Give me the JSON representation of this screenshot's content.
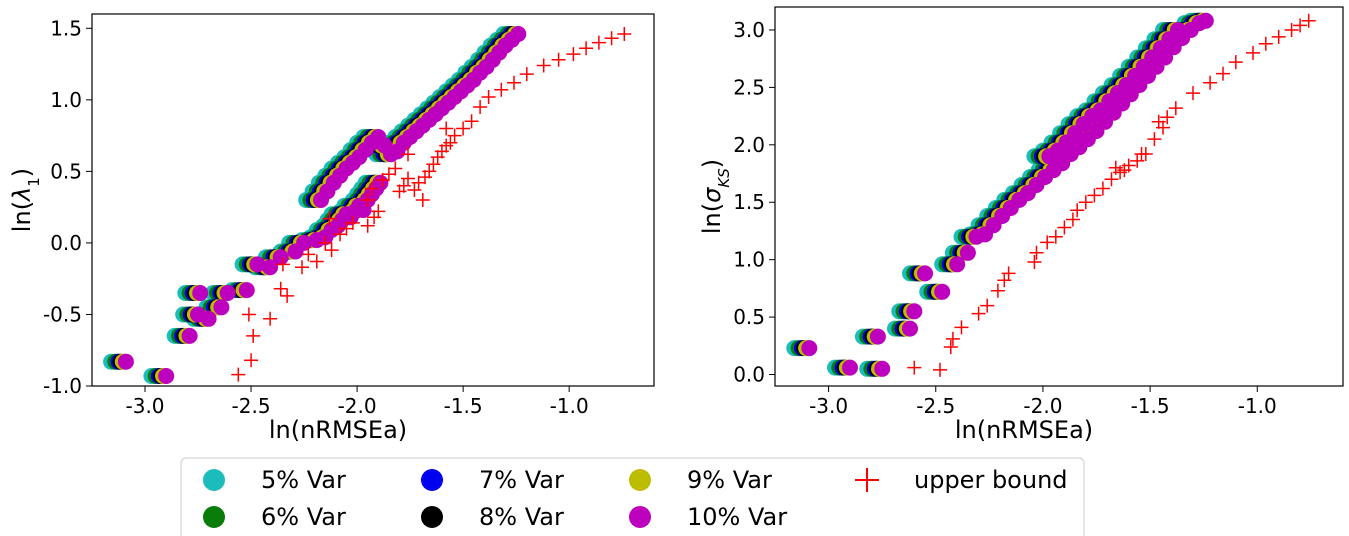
{
  "chart_data": [
    {
      "type": "scatter",
      "xlabel": "ln(nRMSEa)",
      "ylabel": "ln(λ1)",
      "xlim": [
        -3.25,
        -0.6
      ],
      "ylim": [
        -1.0,
        1.6
      ],
      "xticks": [
        -3.0,
        -2.5,
        -2.0,
        -1.5,
        -1.0
      ],
      "xtick_labels": [
        "-3.0",
        "-2.5",
        "-2.0",
        "-1.5",
        "-1.0"
      ],
      "yticks": [
        -1.0,
        -0.5,
        0.0,
        0.5,
        1.0,
        1.5
      ],
      "ytick_labels": [
        "-1.0",
        "-0.5",
        "0.0",
        "0.5",
        "1.0",
        "1.5"
      ],
      "grid": false,
      "variance_series": [
        {
          "name": "5% Var",
          "color": "#1cbcbc",
          "shift": -0.04
        },
        {
          "name": "6% Var",
          "color": "#0a7c0a",
          "shift": -0.02
        },
        {
          "name": "7% Var",
          "color": "#0000f0",
          "shift": -0.005
        },
        {
          "name": "8% Var",
          "color": "#000000",
          "shift": 0.005
        },
        {
          "name": "9% Var",
          "color": "#bdbd00",
          "shift": 0.015
        },
        {
          "name": "10% Var",
          "color": "#bd00bd",
          "shift": 0.03
        }
      ],
      "base_points": [
        [
          -3.12,
          -0.83
        ],
        [
          -2.93,
          -0.93
        ],
        [
          -2.82,
          -0.65
        ],
        [
          -2.78,
          -0.5
        ],
        [
          -2.77,
          -0.35
        ],
        [
          -2.73,
          -0.53
        ],
        [
          -2.67,
          -0.45
        ],
        [
          -2.64,
          -0.35
        ],
        [
          -2.55,
          -0.33
        ],
        [
          -2.5,
          -0.15
        ],
        [
          -2.44,
          -0.17
        ],
        [
          -2.39,
          -0.1
        ],
        [
          -2.32,
          -0.06
        ],
        [
          -2.28,
          0.0
        ],
        [
          -2.22,
          0.02
        ],
        [
          -2.18,
          0.04
        ],
        [
          -2.15,
          0.09
        ],
        [
          -2.12,
          0.12
        ],
        [
          -2.1,
          0.16
        ],
        [
          -2.08,
          0.2
        ],
        [
          -2.06,
          0.18
        ],
        [
          -2.04,
          0.22
        ],
        [
          -2.02,
          0.26
        ],
        [
          -2.0,
          0.23
        ],
        [
          -1.98,
          0.3
        ],
        [
          -1.96,
          0.34
        ],
        [
          -1.94,
          0.38
        ],
        [
          -1.92,
          0.42
        ],
        [
          -2.2,
          0.3
        ],
        [
          -2.17,
          0.36
        ],
        [
          -2.14,
          0.42
        ],
        [
          -2.11,
          0.47
        ],
        [
          -2.08,
          0.52
        ],
        [
          -2.05,
          0.56
        ],
        [
          -2.02,
          0.6
        ],
        [
          -1.99,
          0.65
        ],
        [
          -1.96,
          0.7
        ],
        [
          -1.93,
          0.74
        ],
        [
          -1.9,
          0.68
        ],
        [
          -1.87,
          0.62
        ],
        [
          -1.84,
          0.64
        ],
        [
          -1.81,
          0.7
        ],
        [
          -1.78,
          0.74
        ],
        [
          -1.75,
          0.78
        ],
        [
          -1.72,
          0.82
        ],
        [
          -1.69,
          0.86
        ],
        [
          -1.66,
          0.9
        ],
        [
          -1.63,
          0.94
        ],
        [
          -1.6,
          0.98
        ],
        [
          -1.57,
          1.02
        ],
        [
          -1.54,
          1.06
        ],
        [
          -1.51,
          1.1
        ],
        [
          -1.48,
          1.14
        ],
        [
          -1.45,
          1.19
        ],
        [
          -1.42,
          1.23
        ],
        [
          -1.39,
          1.28
        ],
        [
          -1.36,
          1.33
        ],
        [
          -1.33,
          1.38
        ],
        [
          -1.3,
          1.42
        ],
        [
          -1.27,
          1.46
        ]
      ],
      "upper_bound": {
        "name": "upper bound",
        "color": "#ff0000",
        "points": [
          [
            -2.56,
            -0.92
          ],
          [
            -2.5,
            -0.82
          ],
          [
            -2.49,
            -0.65
          ],
          [
            -2.51,
            -0.5
          ],
          [
            -2.41,
            -0.53
          ],
          [
            -2.36,
            -0.32
          ],
          [
            -2.33,
            -0.37
          ],
          [
            -2.35,
            -0.15
          ],
          [
            -2.26,
            -0.17
          ],
          [
            -2.23,
            -0.08
          ],
          [
            -2.19,
            -0.13
          ],
          [
            -2.15,
            0.0
          ],
          [
            -2.12,
            -0.05
          ],
          [
            -2.08,
            0.06
          ],
          [
            -2.05,
            0.1
          ],
          [
            -2.02,
            0.14
          ],
          [
            -2.13,
            0.17
          ],
          [
            -1.95,
            0.12
          ],
          [
            -1.92,
            0.18
          ],
          [
            -1.9,
            0.22
          ],
          [
            -1.95,
            0.3
          ],
          [
            -1.93,
            0.38
          ],
          [
            -1.88,
            0.44
          ],
          [
            -1.85,
            0.48
          ],
          [
            -1.82,
            0.52
          ],
          [
            -1.8,
            0.36
          ],
          [
            -1.78,
            0.4
          ],
          [
            -1.76,
            0.45
          ],
          [
            -1.73,
            0.37
          ],
          [
            -1.71,
            0.42
          ],
          [
            -1.69,
            0.3
          ],
          [
            -1.68,
            0.46
          ],
          [
            -1.66,
            0.5
          ],
          [
            -1.64,
            0.55
          ],
          [
            -1.62,
            0.6
          ],
          [
            -1.6,
            0.64
          ],
          [
            -1.58,
            0.68
          ],
          [
            -1.56,
            0.7
          ],
          [
            -1.54,
            0.75
          ],
          [
            -1.5,
            0.8
          ],
          [
            -1.46,
            0.85
          ],
          [
            -1.42,
            0.95
          ],
          [
            -1.38,
            1.02
          ],
          [
            -1.32,
            1.07
          ],
          [
            -1.26,
            1.12
          ],
          [
            -1.2,
            1.18
          ],
          [
            -1.12,
            1.24
          ],
          [
            -1.05,
            1.28
          ],
          [
            -0.98,
            1.32
          ],
          [
            -0.92,
            1.36
          ],
          [
            -0.86,
            1.4
          ],
          [
            -0.8,
            1.43
          ],
          [
            -0.74,
            1.46
          ],
          [
            -1.76,
            0.62
          ],
          [
            -1.58,
            0.8
          ]
        ]
      }
    },
    {
      "type": "scatter",
      "xlabel": "ln(nRMSEa)",
      "ylabel": "ln(σ_KS)",
      "xlim": [
        -3.25,
        -0.6
      ],
      "ylim": [
        -0.1,
        3.2
      ],
      "xticks": [
        -3.0,
        -2.5,
        -2.0,
        -1.5,
        -1.0
      ],
      "xtick_labels": [
        "-3.0",
        "-2.5",
        "-2.0",
        "-1.5",
        "-1.0"
      ],
      "yticks": [
        0.0,
        0.5,
        1.0,
        1.5,
        2.0,
        2.5,
        3.0
      ],
      "ytick_labels": [
        "0.0",
        "0.5",
        "1.0",
        "1.5",
        "2.0",
        "2.5",
        "3.0"
      ],
      "grid": false,
      "variance_series": [
        {
          "name": "5% Var",
          "color": "#1cbcbc",
          "shift": -0.04
        },
        {
          "name": "6% Var",
          "color": "#0a7c0a",
          "shift": -0.02
        },
        {
          "name": "7% Var",
          "color": "#0000f0",
          "shift": -0.005
        },
        {
          "name": "8% Var",
          "color": "#000000",
          "shift": 0.005
        },
        {
          "name": "9% Var",
          "color": "#bdbd00",
          "shift": 0.015
        },
        {
          "name": "10% Var",
          "color": "#bd00bd",
          "shift": 0.03
        }
      ],
      "base_points": [
        [
          -3.12,
          0.23
        ],
        [
          -2.93,
          0.06
        ],
        [
          -2.78,
          0.05
        ],
        [
          -2.8,
          0.33
        ],
        [
          -2.65,
          0.4
        ],
        [
          -2.63,
          0.55
        ],
        [
          -2.58,
          0.88
        ],
        [
          -2.5,
          0.72
        ],
        [
          -2.43,
          0.96
        ],
        [
          -2.38,
          1.06
        ],
        [
          -2.34,
          1.2
        ],
        [
          -2.3,
          1.22
        ],
        [
          -2.26,
          1.3
        ],
        [
          -2.22,
          1.38
        ],
        [
          -2.18,
          1.45
        ],
        [
          -2.14,
          1.52
        ],
        [
          -2.1,
          1.58
        ],
        [
          -2.06,
          1.65
        ],
        [
          -2.02,
          1.72
        ],
        [
          -1.98,
          1.78
        ],
        [
          -1.94,
          1.84
        ],
        [
          -1.9,
          1.92
        ],
        [
          -1.86,
          1.98
        ],
        [
          -1.82,
          2.05
        ],
        [
          -1.78,
          2.12
        ],
        [
          -1.74,
          2.2
        ],
        [
          -1.7,
          2.28
        ],
        [
          -1.66,
          2.36
        ],
        [
          -1.62,
          2.44
        ],
        [
          -1.58,
          2.52
        ],
        [
          -1.54,
          2.6
        ],
        [
          -1.5,
          2.68
        ],
        [
          -1.46,
          2.76
        ],
        [
          -1.42,
          2.85
        ],
        [
          -1.38,
          2.93
        ],
        [
          -1.34,
          3.0
        ],
        [
          -1.3,
          3.06
        ],
        [
          -1.27,
          3.08
        ],
        [
          -2.0,
          1.9
        ],
        [
          -1.96,
          1.95
        ],
        [
          -1.92,
          2.02
        ],
        [
          -1.88,
          2.1
        ],
        [
          -1.84,
          2.18
        ],
        [
          -1.8,
          2.25
        ],
        [
          -1.76,
          2.3
        ],
        [
          -1.72,
          2.38
        ],
        [
          -1.68,
          2.45
        ],
        [
          -1.64,
          2.52
        ],
        [
          -1.6,
          2.6
        ],
        [
          -1.56,
          2.68
        ],
        [
          -1.52,
          2.76
        ],
        [
          -1.48,
          2.84
        ],
        [
          -1.44,
          2.92
        ],
        [
          -1.4,
          3.0
        ]
      ],
      "upper_bound": {
        "name": "upper bound",
        "color": "#ff0000",
        "points": [
          [
            -2.6,
            0.06
          ],
          [
            -2.48,
            0.04
          ],
          [
            -2.43,
            0.24
          ],
          [
            -2.42,
            0.31
          ],
          [
            -2.38,
            0.41
          ],
          [
            -2.3,
            0.53
          ],
          [
            -2.26,
            0.6
          ],
          [
            -2.21,
            0.73
          ],
          [
            -2.18,
            0.82
          ],
          [
            -2.16,
            0.88
          ],
          [
            -2.04,
            0.98
          ],
          [
            -2.03,
            1.06
          ],
          [
            -1.98,
            1.15
          ],
          [
            -1.94,
            1.2
          ],
          [
            -1.9,
            1.28
          ],
          [
            -1.86,
            1.35
          ],
          [
            -1.84,
            1.43
          ],
          [
            -1.8,
            1.5
          ],
          [
            -1.76,
            1.56
          ],
          [
            -1.72,
            1.62
          ],
          [
            -1.68,
            1.7
          ],
          [
            -1.64,
            1.76
          ],
          [
            -1.6,
            1.82
          ],
          [
            -1.56,
            1.86
          ],
          [
            -1.52,
            1.92
          ],
          [
            -1.48,
            2.05
          ],
          [
            -1.44,
            2.15
          ],
          [
            -1.42,
            2.24
          ],
          [
            -1.38,
            2.32
          ],
          [
            -1.3,
            2.45
          ],
          [
            -1.22,
            2.54
          ],
          [
            -1.16,
            2.62
          ],
          [
            -1.1,
            2.72
          ],
          [
            -1.02,
            2.8
          ],
          [
            -0.96,
            2.88
          ],
          [
            -0.9,
            2.94
          ],
          [
            -0.84,
            3.0
          ],
          [
            -0.8,
            3.04
          ],
          [
            -0.76,
            3.08
          ],
          [
            -1.62,
            1.78
          ],
          [
            -1.66,
            1.8
          ],
          [
            -1.54,
            1.92
          ],
          [
            -1.46,
            2.2
          ]
        ]
      }
    }
  ],
  "legend": {
    "items": [
      {
        "label": "5% Var",
        "color": "#1cbcbc",
        "marker": "circle"
      },
      {
        "label": "6% Var",
        "color": "#0a7c0a",
        "marker": "circle"
      },
      {
        "label": "7% Var",
        "color": "#0000f0",
        "marker": "circle"
      },
      {
        "label": "8% Var",
        "color": "#000000",
        "marker": "circle"
      },
      {
        "label": "9% Var",
        "color": "#bdbd00",
        "marker": "circle"
      },
      {
        "label": "10% Var",
        "color": "#bd00bd",
        "marker": "circle"
      },
      {
        "label": "upper bound",
        "color": "#ff0000",
        "marker": "plus"
      }
    ]
  }
}
